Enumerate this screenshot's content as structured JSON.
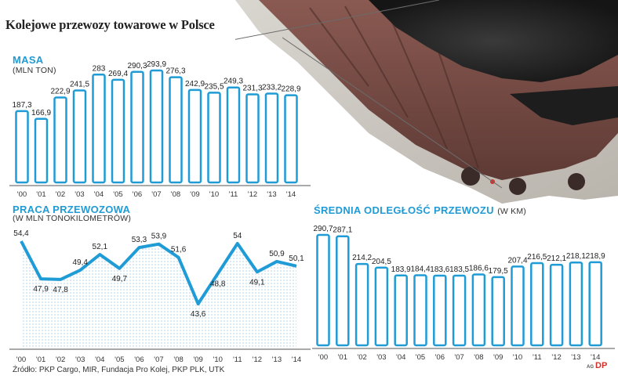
{
  "title": "Kolejowe przewozy towarowe w Polsce",
  "source": "Źródło: PKP Cargo, MIR, Fundacja Pro Kolej, PKP PLK, UTK",
  "author_mark": "AG",
  "logo_text": "DP",
  "colors": {
    "accent": "#1f9bd6",
    "bar_fill": "#ffffff",
    "dot_bg": "#cfe7f3"
  },
  "chart_data": [
    {
      "type": "bar",
      "title": "MASA",
      "subtitle": "(MLN TON)",
      "categories": [
        "'00",
        "'01",
        "'02",
        "'03",
        "'04",
        "'05",
        "'06",
        "'07",
        "'08",
        "'09",
        "'10",
        "'11",
        "'12",
        "'13",
        "'14"
      ],
      "values": [
        187.3,
        166.9,
        222.9,
        241.5,
        283,
        269.4,
        290.3,
        293.9,
        276.3,
        242.9,
        235.5,
        249.3,
        231.3,
        233.2,
        228.9
      ],
      "labels": [
        "187,3",
        "166,9",
        "222,9",
        "241,5",
        "283",
        "269,4",
        "290,3",
        "293,9",
        "276,3",
        "242,9",
        "235,5",
        "249,3",
        "231,3",
        "233,2",
        "228,9"
      ],
      "ylim": [
        0,
        300
      ]
    },
    {
      "type": "line",
      "title": "PRACA PRZEWOZOWA",
      "subtitle": "(W MLN TONOKILOMETRÓW)",
      "categories": [
        "'00",
        "'01",
        "'02",
        "'03",
        "'04",
        "'05",
        "'06",
        "'07",
        "'08",
        "'09",
        "'10",
        "'11",
        "'12",
        "'13",
        "'14"
      ],
      "values": [
        54.4,
        47.9,
        47.8,
        49.4,
        52.1,
        49.7,
        53.3,
        53.9,
        51.6,
        43.6,
        48.8,
        54,
        49.1,
        50.9,
        50.1
      ],
      "labels": [
        "54,4",
        "47,9",
        "47,8",
        "49,4",
        "52,1",
        "49,7",
        "53,3",
        "53,9",
        "51,6",
        "43,6",
        "48,8",
        "54",
        "49,1",
        "50,9",
        "50,1"
      ],
      "ylim": [
        0,
        56
      ]
    },
    {
      "type": "bar",
      "title": "ŚREDNIA ODLEGŁOŚĆ PRZEWOZU",
      "subtitle": "(W KM)",
      "categories": [
        "'00",
        "'01",
        "'02",
        "'03",
        "'04",
        "'05",
        "'06",
        "'07",
        "'08",
        "'09",
        "'10",
        "'11",
        "'12",
        "'13",
        "'14"
      ],
      "values": [
        290.7,
        287.1,
        214.2,
        204.5,
        183.9,
        184.4,
        183.6,
        183.5,
        186.6,
        179.5,
        207.4,
        216.5,
        212.1,
        218.1,
        218.9
      ],
      "labels": [
        "290,7",
        "287,1",
        "214,2",
        "204,5",
        "183,9",
        "184,4",
        "183,6",
        "183,5",
        "186,6",
        "179,5",
        "207,4",
        "216,5",
        "212,1",
        "218,1",
        "218,9"
      ],
      "ylim": [
        0,
        300
      ]
    }
  ]
}
